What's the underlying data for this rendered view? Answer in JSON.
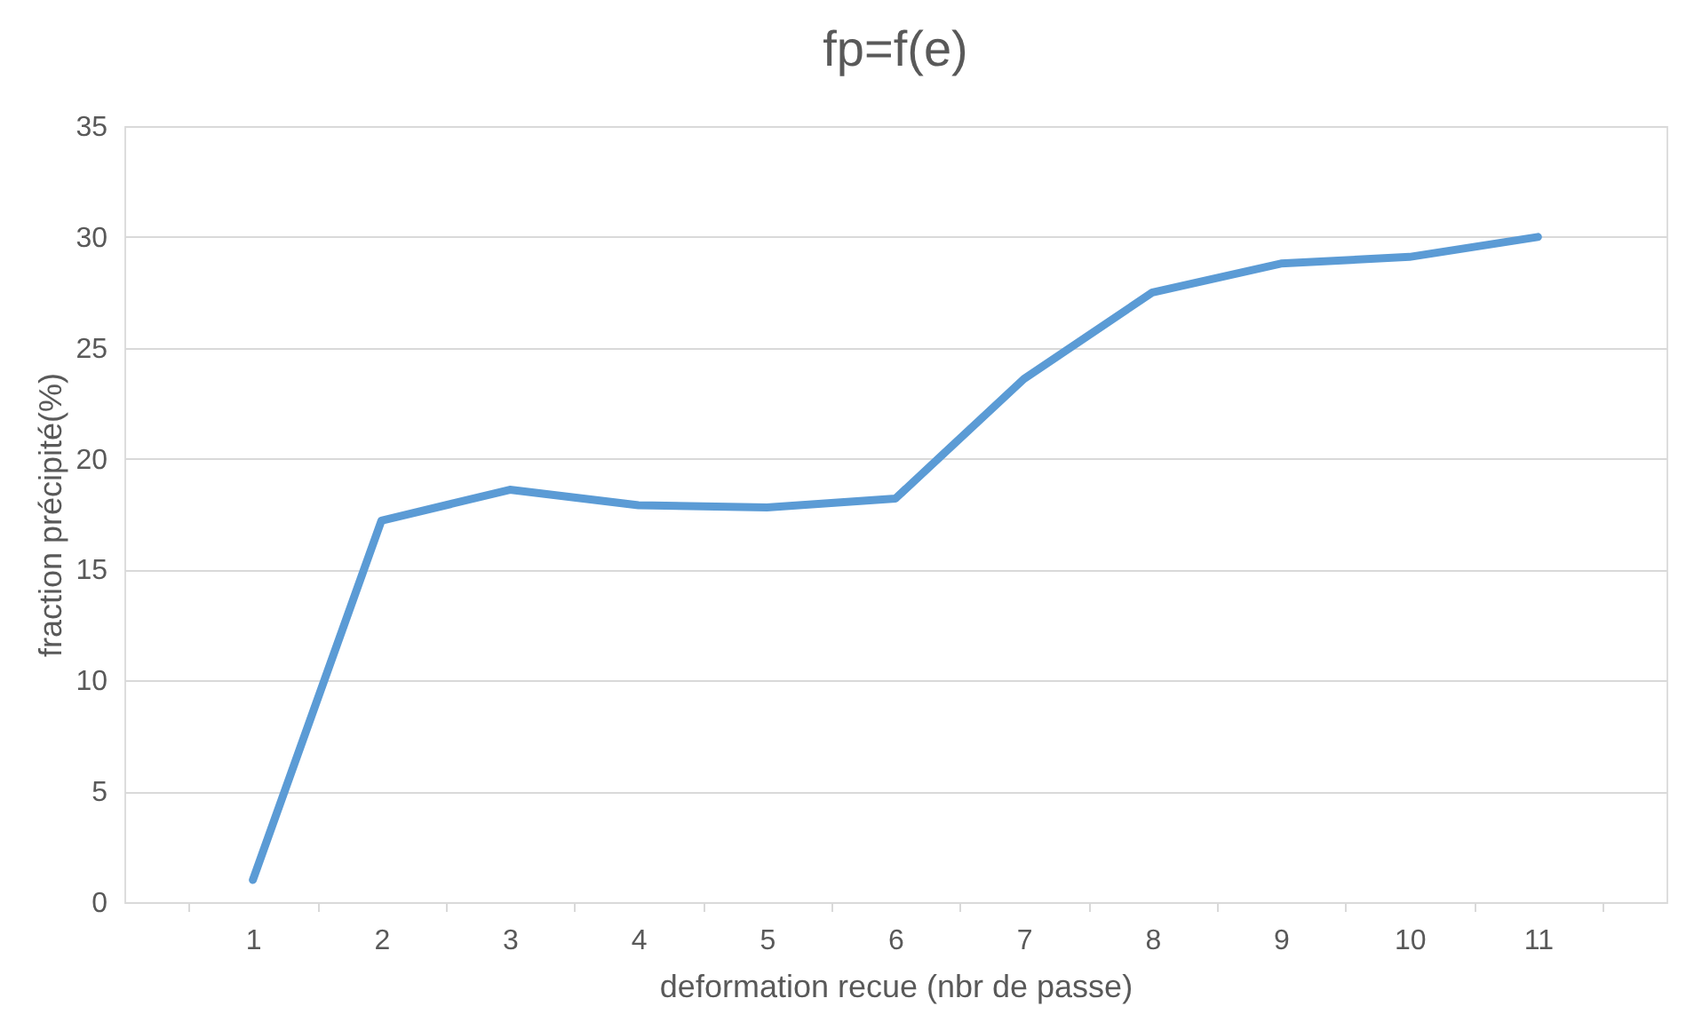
{
  "chart_data": {
    "type": "line",
    "title": "fp=f(e)",
    "xlabel": "deformation recue (nbr de passe)",
    "ylabel": "fraction précipité(%)",
    "categories": [
      "1",
      "2",
      "3",
      "4",
      "5",
      "6",
      "7",
      "8",
      "9",
      "10",
      "11"
    ],
    "series": [
      {
        "color": "#5b9bd5",
        "values": [
          1.0,
          17.2,
          18.6,
          17.9,
          17.8,
          18.2,
          23.6,
          27.5,
          28.8,
          29.1,
          30.0
        ]
      }
    ],
    "ylim": [
      0,
      35
    ],
    "yticks": [
      0,
      5,
      10,
      15,
      20,
      25,
      30,
      35
    ],
    "grid": "y",
    "marker": "none",
    "line_style": "solid"
  }
}
